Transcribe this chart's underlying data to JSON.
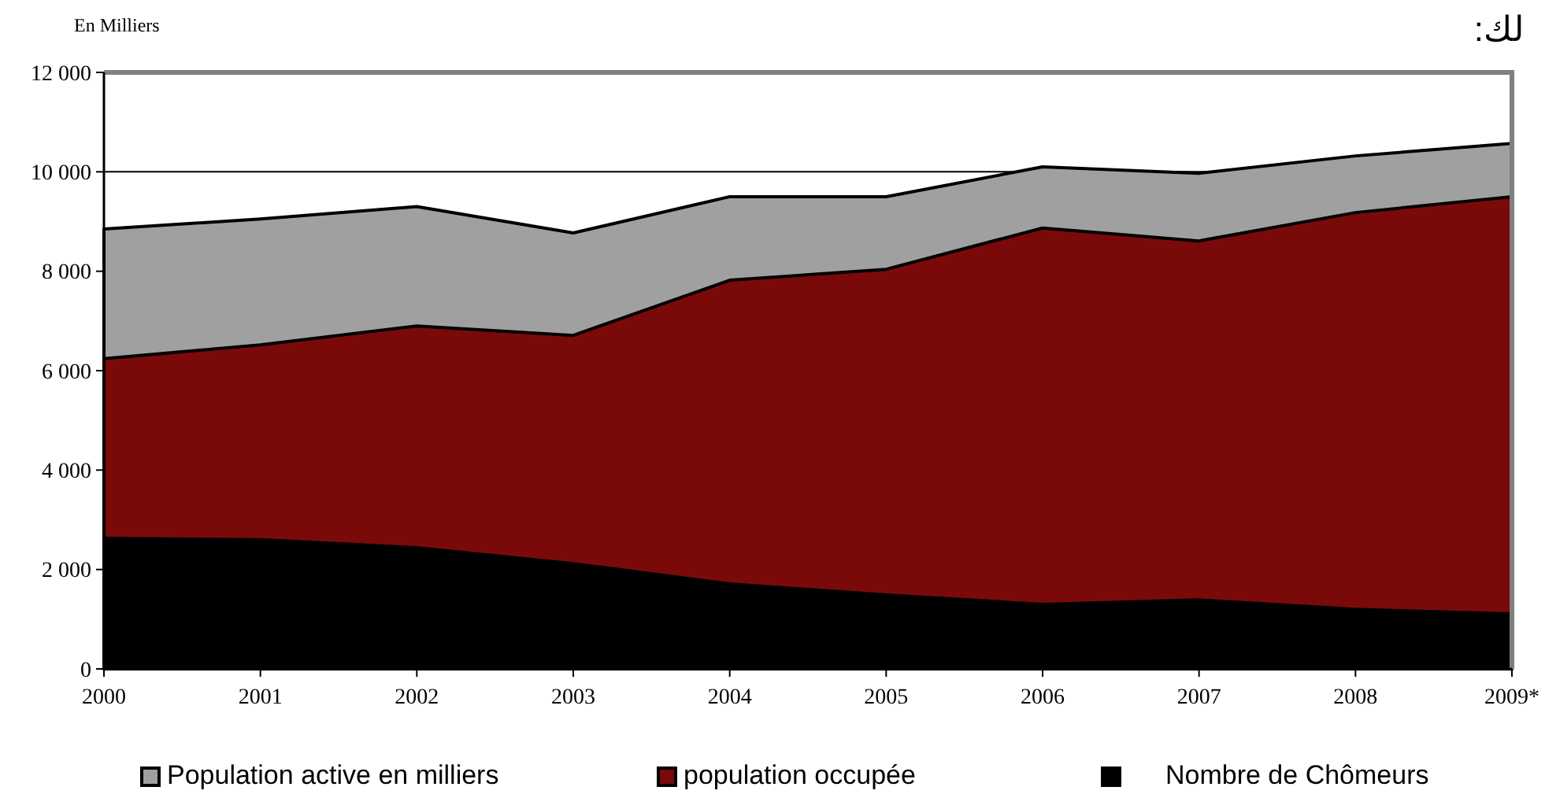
{
  "chart_data": {
    "type": "area",
    "ylabel": "En Milliers",
    "annotations": [
      "لك:"
    ],
    "categories": [
      "2000",
      "2001",
      "2002",
      "2003",
      "2004",
      "2005",
      "2006",
      "2007",
      "2008",
      "2009*"
    ],
    "series": [
      {
        "name": "Population active en milliers",
        "color": "#a0a0a0",
        "values": [
          8850,
          9050,
          9300,
          8770,
          9500,
          9500,
          10100,
          9970,
          10320,
          10570
        ]
      },
      {
        "name": "population occupée",
        "color": "#7a0a0a",
        "values": [
          6240,
          6520,
          6900,
          6710,
          7820,
          8040,
          8870,
          8610,
          9180,
          9500
        ]
      },
      {
        "name": "Nombre de Chômeurs",
        "color": "#000000",
        "values": [
          2660,
          2630,
          2470,
          2150,
          1740,
          1520,
          1330,
          1420,
          1230,
          1140
        ]
      }
    ],
    "ylim": [
      0,
      12000
    ],
    "yticks": [
      {
        "value": 0,
        "label": "0"
      },
      {
        "value": 2000,
        "label": "2 000"
      },
      {
        "value": 4000,
        "label": "4 000"
      },
      {
        "value": 6000,
        "label": "6 000"
      },
      {
        "value": 8000,
        "label": "8 000"
      },
      {
        "value": 10000,
        "label": "10 000"
      },
      {
        "value": 12000,
        "label": "12 000"
      }
    ],
    "grid": "y",
    "legend": "bottom"
  }
}
